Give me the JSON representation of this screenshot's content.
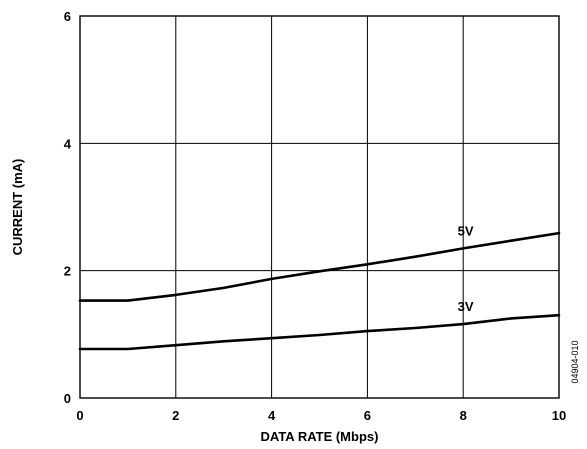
{
  "chart_data": {
    "type": "line",
    "xlabel": "DATA RATE (Mbps)",
    "ylabel": "CURRENT (mA)",
    "xlim": [
      0,
      10
    ],
    "ylim": [
      0,
      6
    ],
    "x_ticks": [
      "0",
      "2",
      "4",
      "6",
      "8",
      "10"
    ],
    "y_ticks": [
      "0",
      "2",
      "4",
      "6"
    ],
    "grid": true,
    "series": [
      {
        "name": "5V",
        "x": [
          0,
          1,
          2,
          3,
          4,
          5,
          6,
          7,
          8,
          9,
          10
        ],
        "values": [
          1.53,
          1.53,
          1.62,
          1.73,
          1.87,
          1.99,
          2.1,
          2.22,
          2.35,
          2.47,
          2.59
        ]
      },
      {
        "name": "3V",
        "x": [
          0,
          1,
          2,
          3,
          4,
          5,
          6,
          7,
          8,
          9,
          10
        ],
        "values": [
          0.77,
          0.77,
          0.83,
          0.89,
          0.94,
          0.99,
          1.05,
          1.1,
          1.16,
          1.25,
          1.3
        ]
      }
    ],
    "annotations": [
      "04904-010"
    ]
  }
}
